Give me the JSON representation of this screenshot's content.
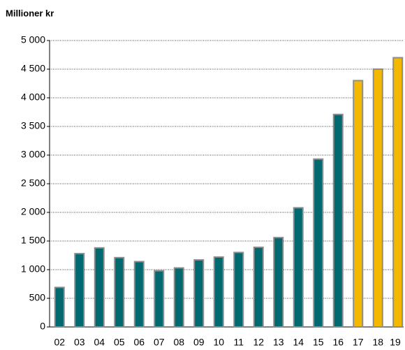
{
  "chart_data": {
    "type": "bar",
    "title": "Millioner kr",
    "categories": [
      "02",
      "03",
      "04",
      "05",
      "06",
      "07",
      "08",
      "09",
      "10",
      "11",
      "12",
      "13",
      "14",
      "15",
      "16",
      "17",
      "18",
      "19"
    ],
    "values": [
      690,
      1280,
      1380,
      1210,
      1140,
      980,
      1030,
      1170,
      1220,
      1300,
      1390,
      1560,
      2080,
      2930,
      3710,
      4300,
      4500,
      4700
    ],
    "colors": [
      "#006a70",
      "#006a70",
      "#006a70",
      "#006a70",
      "#006a70",
      "#006a70",
      "#006a70",
      "#006a70",
      "#006a70",
      "#006a70",
      "#006a70",
      "#006a70",
      "#006a70",
      "#006a70",
      "#006a70",
      "#f5b800",
      "#f5b800",
      "#f5b800"
    ],
    "ylim": [
      0,
      5000
    ],
    "yticks": [
      0,
      500,
      {
        "value": 1000,
        "label": "1 000"
      },
      {
        "value": 1500,
        "label": "1 500"
      },
      {
        "value": 2000,
        "label": "2 000"
      },
      {
        "value": 2500,
        "label": "2 500"
      },
      {
        "value": 3000,
        "label": "3 000"
      },
      {
        "value": 3500,
        "label": "3 500"
      },
      {
        "value": 4000,
        "label": "4 000"
      },
      {
        "value": 4500,
        "label": "4 500"
      },
      {
        "value": 5000,
        "label": "5 000"
      }
    ],
    "grid": true
  }
}
